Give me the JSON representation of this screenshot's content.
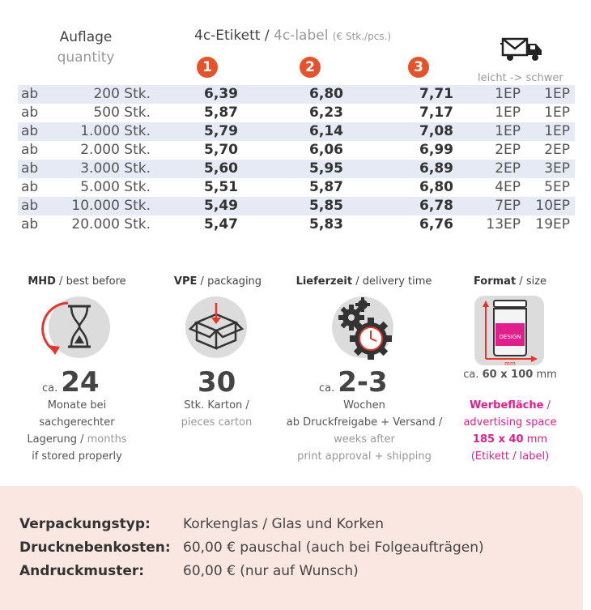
{
  "header": {
    "qty_de": "Auflage",
    "qty_en": "quantity",
    "label_de": "4c-Etikett",
    "label_sep": " / ",
    "label_en": "4c-label",
    "label_unit": "(€ Stk./pcs.)",
    "badges": [
      "1",
      "2",
      "3"
    ],
    "weight_header": "leicht -> schwer",
    "shipping_icon": "truck-mail-icon"
  },
  "rows": [
    {
      "prefix": "ab",
      "qty": "200 Stk.",
      "p1": "6,39",
      "p2": "6,80",
      "p3": "7,71",
      "w1": "1EP",
      "w2": "1EP"
    },
    {
      "prefix": "ab",
      "qty": "500 Stk.",
      "p1": "5,87",
      "p2": "6,23",
      "p3": "7,17",
      "w1": "1EP",
      "w2": "1EP"
    },
    {
      "prefix": "ab",
      "qty": "1.000 Stk.",
      "p1": "5,79",
      "p2": "6,14",
      "p3": "7,08",
      "w1": "1EP",
      "w2": "1EP"
    },
    {
      "prefix": "ab",
      "qty": "2.000 Stk.",
      "p1": "5,70",
      "p2": "6,06",
      "p3": "6,99",
      "w1": "2EP",
      "w2": "2EP"
    },
    {
      "prefix": "ab",
      "qty": "3.000 Stk.",
      "p1": "5,60",
      "p2": "5,95",
      "p3": "6,89",
      "w1": "2EP",
      "w2": "3EP"
    },
    {
      "prefix": "ab",
      "qty": "5.000 Stk.",
      "p1": "5,51",
      "p2": "5,87",
      "p3": "6,80",
      "w1": "4EP",
      "w2": "5EP"
    },
    {
      "prefix": "ab",
      "qty": "10.000 Stk.",
      "p1": "5,49",
      "p2": "5,85",
      "p3": "6,78",
      "w1": "7EP",
      "w2": "10EP"
    },
    {
      "prefix": "ab",
      "qty": "20.000 Stk.",
      "p1": "5,47",
      "p2": "5,83",
      "p3": "6,76",
      "w1": "13EP",
      "w2": "19EP"
    }
  ],
  "mhd": {
    "title_de": "MHD",
    "title_en": "best before",
    "icon": "hourglass-icon",
    "ca": "ca.",
    "value": "24",
    "line1": "Monate bei",
    "line2": "sachgerechter",
    "line3_de": "Lagerung",
    "line3_en": "months",
    "line4": "if stored properly"
  },
  "vpe": {
    "title_de": "VPE",
    "title_en": "packaging",
    "icon": "box-icon",
    "value": "30",
    "line1": "Stk. Karton /",
    "line2": "pieces carton"
  },
  "lieferzeit": {
    "title_de": "Lieferzeit",
    "title_en": "delivery time",
    "icon": "gears-clock-icon",
    "ca": "ca.",
    "value": "2-3",
    "line1": "Wochen",
    "line2": "ab Druckfreigabe + Versand /",
    "line3": "weeks after",
    "line4": "print approval + shipping"
  },
  "format": {
    "title_de": "Format",
    "title_en": "size",
    "icon": "jar-icon",
    "icon_label": "DESIGN",
    "icon_unit": "mm",
    "ca": "ca.",
    "size": "60 x 100",
    "size_unit": "mm",
    "ad_de": "Werbefläche",
    "ad_en": "advertising space",
    "ad_size": "185 x 40",
    "ad_unit": "mm",
    "ad_note": "(Etikett / label)",
    "accent": "#e01e8c"
  },
  "bottom": [
    {
      "key": "Verpackungstyp:",
      "value": "Korkenglas / Glas und Korken"
    },
    {
      "key": "Drucknebenkosten:",
      "value": "60,00 € pauschal (auch bei Folgeaufträgen)"
    },
    {
      "key": "Andruckmuster:",
      "value": "60,00 € (nur auf Wunsch)"
    }
  ],
  "colors": {
    "badge": "#e4532b",
    "row_shade": "#e6eaf4",
    "bottom_bg": "#fbe7e1",
    "accent": "#e01e8c"
  }
}
